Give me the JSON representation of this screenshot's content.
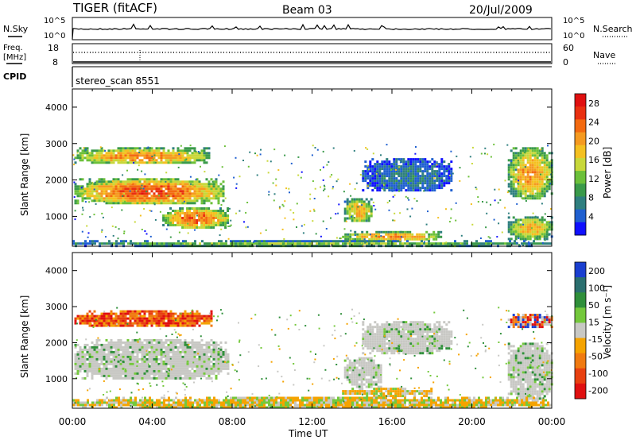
{
  "header": {
    "title": "TIGER (fitACF)",
    "beam": "Beam 03",
    "date": "20/Jul/2009"
  },
  "scan_panel": {
    "left_top_label": "N.Sky",
    "left_axis_ticks": [
      "10^5",
      "10^0"
    ],
    "right_axis_ticks": [
      "10^5",
      "10^0"
    ],
    "right_label": "N.Search"
  },
  "freq_panel": {
    "left_label_line1": "Freq.",
    "left_label_line2": "[MHz]",
    "left_ticks": [
      "18",
      "8"
    ],
    "right_ticks": [
      "60",
      "0"
    ],
    "right_label": "Nave"
  },
  "cpid_panel": {
    "label": "CPID",
    "value": "stereo_scan 8551"
  },
  "x_axis": {
    "label": "Time UT",
    "ticks": [
      "00:00",
      "04:00",
      "08:00",
      "12:00",
      "16:00",
      "20:00",
      "00:00"
    ]
  },
  "chart_data": [
    {
      "type": "heatmap",
      "parameter": "power",
      "xlabel": "Time UT",
      "ylabel": "Slant Range [km]",
      "x_range_hours": [
        0,
        24
      ],
      "y_range_km": [
        180,
        4500
      ],
      "y_ticks": [
        1000,
        2000,
        3000,
        4000
      ],
      "colorbar": {
        "label": "Power [dB]",
        "ticks": [
          4,
          8,
          12,
          16,
          20,
          24,
          28
        ],
        "range": [
          0,
          30
        ],
        "colors": [
          "#1010ff",
          "#2060d0",
          "#2f7f7f",
          "#3a9a4a",
          "#6cc03a",
          "#c8d83a",
          "#f4c020",
          "#f59a20",
          "#f36a10",
          "#e93010",
          "#e01010"
        ]
      },
      "echo_regions": [
        {
          "t_start": 0.1,
          "t_end": 6.8,
          "r_start": 2450,
          "r_end": 2900,
          "value": 20
        },
        {
          "t_start": 0.1,
          "t_end": 7.6,
          "r_start": 1350,
          "r_end": 2050,
          "value": 23
        },
        {
          "t_start": 4.5,
          "t_end": 7.8,
          "r_start": 700,
          "r_end": 1250,
          "value": 22
        },
        {
          "t_start": 13.6,
          "t_end": 15.0,
          "r_start": 850,
          "r_end": 1500,
          "value": 18
        },
        {
          "t_start": 13.5,
          "t_end": 18.5,
          "r_start": 350,
          "r_end": 600,
          "value": 20
        },
        {
          "t_start": 14.5,
          "t_end": 19.0,
          "r_start": 1700,
          "r_end": 2600,
          "value": 6
        },
        {
          "t_start": 21.8,
          "t_end": 24.0,
          "r_start": 1500,
          "r_end": 2900,
          "value": 19
        },
        {
          "t_start": 21.8,
          "t_end": 24.0,
          "r_start": 400,
          "r_end": 1000,
          "value": 17
        },
        {
          "t_start": 0.0,
          "t_end": 24.0,
          "r_start": 200,
          "r_end": 350,
          "value": 12
        }
      ]
    },
    {
      "type": "heatmap",
      "parameter": "velocity",
      "xlabel": "Time UT",
      "ylabel": "Slant Range [km]",
      "x_range_hours": [
        0,
        24
      ],
      "y_range_km": [
        180,
        4500
      ],
      "y_ticks": [
        1000,
        2000,
        3000,
        4000
      ],
      "colorbar": {
        "label": "Velocity [m s^-1]",
        "ticks": [
          "200",
          "100",
          "50",
          "15",
          "-15",
          "-50",
          "-100",
          "-200"
        ],
        "colors": [
          "#1a3fd0",
          "#2b6f6f",
          "#2f8f3a",
          "#74c83c",
          "#c8c8c4",
          "#f5a300",
          "#f07a10",
          "#e84010",
          "#e01010"
        ]
      },
      "echo_regions": [
        {
          "t_start": 0.1,
          "t_end": 7.0,
          "r_start": 2450,
          "r_end": 2900,
          "class": "-100"
        },
        {
          "t_start": 0.1,
          "t_end": 7.8,
          "r_start": 1000,
          "r_end": 2100,
          "class": "0"
        },
        {
          "t_start": 13.6,
          "t_end": 15.5,
          "r_start": 800,
          "r_end": 1600,
          "class": "0"
        },
        {
          "t_start": 14.5,
          "t_end": 19.0,
          "r_start": 1700,
          "r_end": 2600,
          "class": "0"
        },
        {
          "t_start": 13.5,
          "t_end": 18.0,
          "r_start": 550,
          "r_end": 750,
          "class": "-50"
        },
        {
          "t_start": 21.8,
          "t_end": 24.0,
          "r_start": 2450,
          "r_end": 2800,
          "class": "100"
        },
        {
          "t_start": 21.8,
          "t_end": 24.0,
          "r_start": 400,
          "r_end": 2000,
          "class": "0"
        },
        {
          "t_start": 0.0,
          "t_end": 24.0,
          "r_start": 200,
          "r_end": 500,
          "class": "-50"
        }
      ]
    }
  ]
}
